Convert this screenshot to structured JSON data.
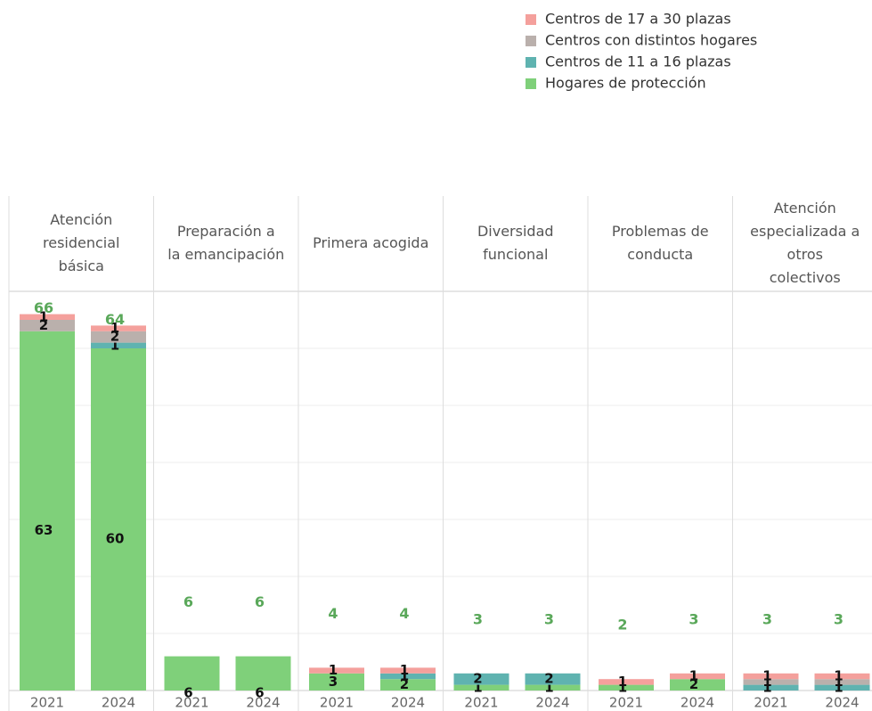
{
  "chart_data": {
    "type": "stacked-bar",
    "panels": [
      {
        "name": "Atención residencial básica",
        "categories": [
          "2021",
          "2024"
        ],
        "totals": [
          66,
          64
        ]
      },
      {
        "name": "Preparación a la emancipación",
        "categories": [
          "2021",
          "2024"
        ],
        "totals": [
          6,
          6
        ]
      },
      {
        "name": "Primera acogida",
        "categories": [
          "2021",
          "2024"
        ],
        "totals": [
          4,
          4
        ]
      },
      {
        "name": "Diversidad funcional",
        "categories": [
          "2021",
          "2024"
        ],
        "totals": [
          3,
          3
        ]
      },
      {
        "name": "Problemas de conducta",
        "categories": [
          "2021",
          "2024"
        ],
        "totals": [
          2,
          3
        ]
      },
      {
        "name": "Atención especializada a otros colectivos",
        "categories": [
          "2021",
          "2024"
        ],
        "totals": [
          3,
          3
        ]
      }
    ],
    "series": [
      {
        "name": "Hogares de protección",
        "color": "#7fd07a",
        "values": [
          63,
          60,
          6,
          6,
          3,
          2,
          1,
          1,
          1,
          2,
          null,
          null
        ]
      },
      {
        "name": "Centros de 11 a 16 plazas",
        "color": "#5fb3b0",
        "values": [
          null,
          1,
          null,
          null,
          null,
          1,
          2,
          2,
          null,
          null,
          1,
          1
        ]
      },
      {
        "name": "Centros con distintos hogares",
        "color": "#bab0ac",
        "values": [
          2,
          2,
          null,
          null,
          null,
          null,
          null,
          null,
          null,
          null,
          1,
          1
        ]
      },
      {
        "name": "Centros de 17 a 30 plazas",
        "color": "#f4a09c",
        "values": [
          1,
          1,
          null,
          null,
          1,
          1,
          null,
          null,
          1,
          1,
          1,
          1
        ]
      }
    ],
    "ylim": [
      0,
      70
    ],
    "yticks": [
      0,
      10,
      20,
      30,
      40,
      50,
      60,
      70
    ],
    "grid": true
  }
}
